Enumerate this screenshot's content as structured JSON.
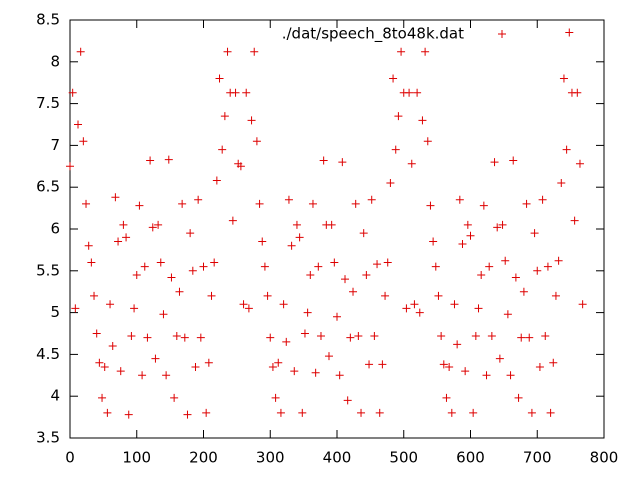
{
  "chart_data": {
    "type": "scatter",
    "x": [
      0,
      4,
      8,
      12,
      16,
      20,
      24,
      28,
      32,
      36,
      40,
      44,
      48,
      52,
      56,
      60,
      64,
      68,
      72,
      76,
      80,
      84,
      88,
      92,
      96,
      100,
      104,
      108,
      112,
      116,
      120,
      124,
      128,
      132,
      136,
      140,
      144,
      148,
      152,
      156,
      160,
      164,
      168,
      172,
      176,
      180,
      184,
      188,
      192,
      196,
      200,
      204,
      208,
      212,
      216,
      220,
      224,
      228,
      232,
      236,
      240,
      244,
      248,
      252,
      256,
      260,
      264,
      268,
      272,
      276,
      280,
      284,
      288,
      292,
      296,
      300,
      304,
      308,
      312,
      316,
      320,
      324,
      328,
      332,
      336,
      340,
      344,
      348,
      352,
      356,
      360,
      364,
      368,
      372,
      376,
      380,
      384,
      388,
      392,
      396,
      400,
      404,
      408,
      412,
      416,
      420,
      424,
      428,
      432,
      436,
      440,
      444,
      448,
      452,
      456,
      460,
      464,
      468,
      472,
      476,
      480,
      484,
      488,
      492,
      496,
      500,
      504,
      508,
      512,
      516,
      520,
      524,
      528,
      532,
      536,
      540,
      544,
      548,
      552,
      556,
      560,
      564,
      568,
      572,
      576,
      580,
      584,
      588,
      592,
      596,
      600,
      604,
      608,
      612,
      616,
      620,
      624,
      628,
      632,
      636,
      640,
      644,
      648,
      652,
      656,
      660,
      664,
      668,
      672,
      676,
      680,
      684,
      688,
      692,
      696,
      700,
      704,
      708,
      712,
      716,
      720,
      724,
      728,
      732,
      736,
      740,
      744,
      748,
      752,
      756,
      760,
      764,
      768
    ],
    "series": [
      {
        "name": "./dat/speech_8to48k.dat",
        "color": "#dd0000",
        "values": [
          6.75,
          7.63,
          5.05,
          7.25,
          8.12,
          7.05,
          6.3,
          5.8,
          5.6,
          5.2,
          4.75,
          4.4,
          3.98,
          4.35,
          3.8,
          5.1,
          4.6,
          6.38,
          5.85,
          4.3,
          6.05,
          5.9,
          3.78,
          4.72,
          5.05,
          5.45,
          6.28,
          4.25,
          5.55,
          4.7,
          6.82,
          6.02,
          4.45,
          6.05,
          5.6,
          4.98,
          4.25,
          6.83,
          5.42,
          3.98,
          4.72,
          5.25,
          6.3,
          4.7,
          3.78,
          5.95,
          5.5,
          4.35,
          6.35,
          4.7,
          5.55,
          3.8,
          4.4,
          5.2,
          5.6,
          6.58,
          7.8,
          6.95,
          7.35,
          8.12,
          7.63,
          6.1,
          7.63,
          6.78,
          6.75,
          5.1,
          7.63,
          5.05,
          7.3,
          8.12,
          7.05,
          6.3,
          5.85,
          5.55,
          5.2,
          4.7,
          4.35,
          3.98,
          4.4,
          3.8,
          5.1,
          4.65,
          6.35,
          5.8,
          4.3,
          6.05,
          5.9,
          3.8,
          4.75,
          5.0,
          5.45,
          6.3,
          4.28,
          5.55,
          4.72,
          6.82,
          6.05,
          4.48,
          6.05,
          5.6,
          4.95,
          4.25,
          6.8,
          5.4,
          3.95,
          4.7,
          5.25,
          6.3,
          4.72,
          3.8,
          5.95,
          5.45,
          4.38,
          6.35,
          4.72,
          5.58,
          3.8,
          4.38,
          5.2,
          5.6,
          6.55,
          7.8,
          6.95,
          7.35,
          8.12,
          7.63,
          5.05,
          7.63,
          6.78,
          5.1,
          7.63,
          5.0,
          7.3,
          8.12,
          7.05,
          6.28,
          5.85,
          5.55,
          5.2,
          4.72,
          4.38,
          3.98,
          4.35,
          3.8,
          5.1,
          4.62,
          6.35,
          5.82,
          4.3,
          6.05,
          5.92,
          3.8,
          4.72,
          5.05,
          5.45,
          6.28,
          4.25,
          5.55,
          4.72,
          6.8,
          6.02,
          4.45,
          6.05,
          5.62,
          4.98,
          4.25,
          6.82,
          5.42,
          3.98,
          4.7,
          5.25,
          6.3,
          4.7,
          3.8,
          5.95,
          5.5,
          4.35,
          6.35,
          4.72,
          5.55,
          3.8,
          4.4,
          5.2,
          5.62,
          6.55,
          7.8,
          6.95,
          8.35,
          7.63,
          6.1,
          7.63,
          6.78,
          5.1
        ]
      }
    ],
    "xlim": [
      0,
      800
    ],
    "xticks": [
      0,
      100,
      200,
      300,
      400,
      500,
      600,
      700,
      800
    ],
    "ylim": [
      3.5,
      8.5
    ],
    "yticks": [
      3.5,
      4,
      4.5,
      5,
      5.5,
      6,
      6.5,
      7,
      7.5,
      8,
      8.5
    ],
    "legend": "top-right"
  }
}
